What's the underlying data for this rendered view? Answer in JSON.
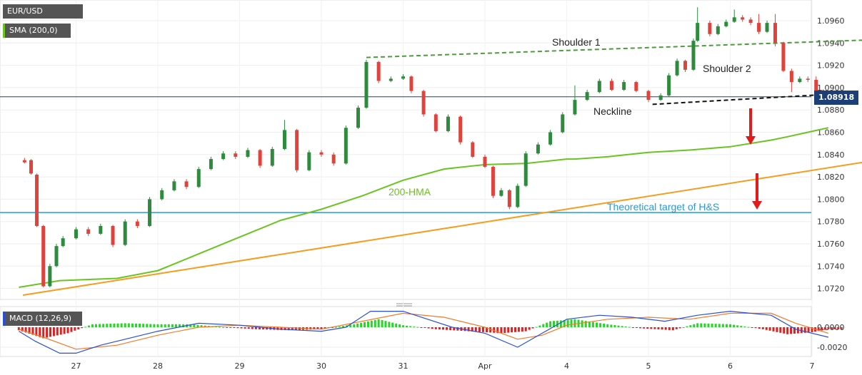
{
  "badges": {
    "symbol": "EUR/USD",
    "sma": "SMA (200,0)",
    "macd": "MACD (12,26,9)",
    "price": "1.08918"
  },
  "colors": {
    "bull": "#2e8b3e",
    "bear": "#e0433c",
    "hma": "#6ac420",
    "trend": "#f59d1e",
    "target": "#2a9ad6",
    "macd_line": "#2a4fd6",
    "signal_line": "#f07b2a",
    "hist_pos": "#28d428",
    "hist_neg": "#e02020",
    "arrow": "#e01c1c",
    "shoulder_line": "#4a9e3a"
  },
  "chart_data": {
    "type": "candlestick",
    "x_ticks": [
      "27",
      "28",
      "29",
      "30",
      "31",
      "Apr",
      "4",
      "5",
      "6",
      "7"
    ],
    "y_ticks": [
      "1.0960",
      "1.0940",
      "1.0920",
      "1.0900",
      "1.0880",
      "1.0860",
      "1.0840",
      "1.0820",
      "1.0800",
      "1.0780",
      "1.0760",
      "1.0740",
      "1.0720"
    ],
    "macd_ticks": [
      "0.0000",
      "-0.0020"
    ],
    "current_price": 1.08918,
    "target_level": 1.0788,
    "annotations": {
      "shoulder1": "Shoulder 1",
      "shoulder2": "Shoulder 2",
      "neckline": "Neckline",
      "hma": "200-HMA",
      "target": "Theoretical target of H&S"
    },
    "hma": [
      [
        26.3,
        1.0721
      ],
      [
        26.8,
        1.0727
      ],
      [
        27.5,
        1.0729
      ],
      [
        28,
        1.0736
      ],
      [
        28.5,
        1.0751
      ],
      [
        29,
        1.0766
      ],
      [
        29.5,
        1.0781
      ],
      [
        30,
        1.0791
      ],
      [
        30.5,
        1.0803
      ],
      [
        31,
        1.0817
      ],
      [
        31.5,
        1.0827
      ],
      [
        32,
        1.0831
      ],
      [
        32.5,
        1.0832
      ],
      [
        33,
        1.0836
      ],
      [
        33,
        1.0836
      ],
      [
        33.1,
        1.0836
      ],
      [
        33.5,
        1.0838
      ],
      [
        34,
        1.0842
      ],
      [
        34.5,
        1.0844
      ],
      [
        35,
        1.0847
      ],
      [
        35.5,
        1.0853
      ],
      [
        35.7,
        1.0856
      ],
      [
        36.2,
        1.0864
      ]
    ],
    "trendline": [
      [
        26.35,
        1.0714
      ],
      [
        37.05,
        1.0838
      ]
    ],
    "shoulder_line": [
      [
        30.55,
        1.0927
      ],
      [
        36.8,
        1.0943
      ]
    ],
    "neckline": [
      [
        34.05,
        1.0885
      ],
      [
        36.45,
        1.0895
      ]
    ],
    "candles": [
      [
        26.37,
        1.0835,
        1.0833,
        1.0837,
        1.0832
      ],
      [
        26.45,
        1.0835,
        1.0823,
        1.0836,
        1.0822
      ],
      [
        26.52,
        1.0822,
        1.0776,
        1.0823,
        1.0775
      ],
      [
        26.6,
        1.0776,
        1.0722,
        1.0777,
        1.0721
      ],
      [
        26.68,
        1.0722,
        1.074,
        1.0742,
        1.0721
      ],
      [
        26.76,
        1.074,
        1.0758,
        1.076,
        1.0739
      ],
      [
        26.84,
        1.0758,
        1.0765,
        1.0767,
        1.0757
      ],
      [
        27.0,
        1.0765,
        1.0773,
        1.0775,
        1.0764
      ],
      [
        27.15,
        1.0773,
        1.0769,
        1.0775,
        1.0767
      ],
      [
        27.3,
        1.0769,
        1.0776,
        1.0778,
        1.0768
      ],
      [
        27.45,
        1.0776,
        1.0759,
        1.0777,
        1.0757
      ],
      [
        27.6,
        1.0759,
        1.078,
        1.0782,
        1.0758
      ],
      [
        27.75,
        1.078,
        1.0776,
        1.0782,
        1.0774
      ],
      [
        27.9,
        1.0776,
        1.08,
        1.0802,
        1.0775
      ],
      [
        28.05,
        1.08,
        1.0808,
        1.081,
        1.0799
      ],
      [
        28.2,
        1.0808,
        1.0816,
        1.0818,
        1.0807
      ],
      [
        28.35,
        1.0816,
        1.0811,
        1.0818,
        1.0809
      ],
      [
        28.5,
        1.0811,
        1.0827,
        1.0829,
        1.081
      ],
      [
        28.65,
        1.0827,
        1.0836,
        1.0838,
        1.0826
      ],
      [
        28.8,
        1.0836,
        1.0841,
        1.0843,
        1.0835
      ],
      [
        28.95,
        1.0841,
        1.0838,
        1.0843,
        1.0836
      ],
      [
        29.1,
        1.0838,
        1.0844,
        1.0846,
        1.0837
      ],
      [
        29.25,
        1.0844,
        1.083,
        1.0845,
        1.0828
      ],
      [
        29.4,
        1.083,
        1.0845,
        1.0847,
        1.0829
      ],
      [
        29.55,
        1.0845,
        1.0862,
        1.0871,
        1.0844
      ],
      [
        29.7,
        1.0862,
        1.0826,
        1.0863,
        1.0824
      ],
      [
        29.85,
        1.0826,
        1.0842,
        1.0844,
        1.0825
      ],
      [
        30.0,
        1.0842,
        1.084,
        1.0844,
        1.0838
      ],
      [
        30.15,
        1.084,
        1.0832,
        1.0842,
        1.083
      ],
      [
        30.3,
        1.0832,
        1.0864,
        1.0866,
        1.0831
      ],
      [
        30.45,
        1.0864,
        1.0882,
        1.0884,
        1.0863
      ],
      [
        30.55,
        1.0882,
        1.0923,
        1.0925,
        1.0881
      ],
      [
        30.7,
        1.0923,
        1.0906,
        1.0924,
        1.0904
      ],
      [
        30.85,
        1.0906,
        1.0908,
        1.091,
        1.0905
      ],
      [
        31.0,
        1.0908,
        1.091,
        1.0912,
        1.0907
      ],
      [
        31.1,
        1.091,
        1.0897,
        1.0911,
        1.0895
      ],
      [
        31.25,
        1.0897,
        1.0876,
        1.0898,
        1.0874
      ],
      [
        31.4,
        1.0876,
        1.0861,
        1.0877,
        1.086
      ],
      [
        31.55,
        1.0861,
        1.0874,
        1.0876,
        1.086
      ],
      [
        31.7,
        1.0874,
        1.0851,
        1.0875,
        1.0849
      ],
      [
        31.85,
        1.0851,
        1.0838,
        1.0852,
        1.0837
      ],
      [
        32.0,
        1.0838,
        1.0829,
        1.084,
        1.0828
      ],
      [
        32.1,
        1.0829,
        1.0803,
        1.083,
        1.0801
      ],
      [
        32.2,
        1.0803,
        1.0808,
        1.081,
        1.0802
      ],
      [
        32.3,
        1.0808,
        1.0793,
        1.0809,
        1.0791
      ],
      [
        32.4,
        1.0793,
        1.0812,
        1.0814,
        1.0792
      ],
      [
        32.5,
        1.0812,
        1.0841,
        1.0843,
        1.0811
      ],
      [
        32.65,
        1.0841,
        1.0849,
        1.0851,
        1.084
      ],
      [
        32.8,
        1.0849,
        1.086,
        1.0862,
        1.0848
      ],
      [
        32.95,
        1.086,
        1.0876,
        1.0878,
        1.0859
      ],
      [
        33.1,
        1.0876,
        1.0889,
        1.0902,
        1.0875
      ],
      [
        33.25,
        1.0889,
        1.0896,
        1.0898,
        1.0888
      ],
      [
        33.4,
        1.0896,
        1.0906,
        1.0908,
        1.0895
      ],
      [
        33.55,
        1.0906,
        1.0898,
        1.0908,
        1.0897
      ],
      [
        33.7,
        1.0898,
        1.0905,
        1.0907,
        1.0897
      ],
      [
        33.85,
        1.0905,
        1.0897,
        1.0906,
        1.0896
      ],
      [
        34.0,
        1.0897,
        1.0889,
        1.0898,
        1.0887
      ],
      [
        34.15,
        1.0889,
        1.0893,
        1.0895,
        1.0888
      ],
      [
        34.25,
        1.0893,
        1.0911,
        1.0913,
        1.0892
      ],
      [
        34.35,
        1.0911,
        1.0924,
        1.0926,
        1.091
      ],
      [
        34.45,
        1.0924,
        1.0916,
        1.0925,
        1.0914
      ],
      [
        34.55,
        1.0916,
        1.0942,
        1.0944,
        1.0915
      ],
      [
        34.6,
        1.0942,
        1.0958,
        1.0972,
        1.0941
      ],
      [
        34.75,
        1.0958,
        1.0948,
        1.096,
        1.0946
      ],
      [
        34.85,
        1.0948,
        1.0955,
        1.0957,
        1.0947
      ],
      [
        34.95,
        1.0955,
        1.0959,
        1.0961,
        1.0954
      ],
      [
        35.05,
        1.0959,
        1.0963,
        1.097,
        1.0958
      ],
      [
        35.15,
        1.0963,
        1.0961,
        1.0965,
        1.0959
      ],
      [
        35.25,
        1.0961,
        1.0958,
        1.0963,
        1.0956
      ],
      [
        35.35,
        1.0958,
        1.095,
        1.0966,
        1.0948
      ],
      [
        35.45,
        1.095,
        1.0958,
        1.096,
        1.0949
      ],
      [
        35.55,
        1.0958,
        1.094,
        1.0966,
        1.0937
      ],
      [
        35.65,
        1.094,
        1.0915,
        1.0941,
        1.0914
      ],
      [
        35.75,
        1.0915,
        1.0905,
        1.0917,
        1.0896
      ],
      [
        35.85,
        1.0905,
        1.0908,
        1.091,
        1.0904
      ],
      [
        35.95,
        1.0908,
        1.0907,
        1.091,
        1.0905
      ],
      [
        36.05,
        1.0907,
        1.0897,
        1.091,
        1.0895
      ],
      [
        36.12,
        1.0897,
        1.0889,
        1.0898,
        1.0886
      ],
      [
        36.2,
        1.0889,
        1.0892,
        1.0894,
        1.0888
      ]
    ],
    "macd": [
      [
        26.3,
        -0.0004
      ],
      [
        26.5,
        -0.0014
      ],
      [
        26.8,
        -0.0026
      ],
      [
        27,
        -0.0026
      ],
      [
        27.3,
        -0.0018
      ],
      [
        27.6,
        -0.0012
      ],
      [
        28,
        -0.0004
      ],
      [
        28.5,
        0.0004
      ],
      [
        29,
        0.0002
      ],
      [
        29.5,
        -0.0002
      ],
      [
        30,
        -0.0004
      ],
      [
        30.3,
        0.0
      ],
      [
        30.6,
        0.0016
      ],
      [
        31,
        0.0016
      ],
      [
        31.3,
        0.0008
      ],
      [
        31.6,
        0.0
      ],
      [
        32,
        -0.0006
      ],
      [
        32.4,
        -0.002
      ],
      [
        32.7,
        -0.0006
      ],
      [
        33,
        0.0008
      ],
      [
        33.4,
        0.0012
      ],
      [
        33.8,
        0.001
      ],
      [
        34.2,
        0.0006
      ],
      [
        34.6,
        0.0012
      ],
      [
        35,
        0.0016
      ],
      [
        35.5,
        0.0012
      ],
      [
        35.8,
        -0.0002
      ],
      [
        36.2,
        -0.001
      ]
    ],
    "signal": [
      [
        26.3,
        -0.0002
      ],
      [
        26.6,
        -0.001
      ],
      [
        27,
        -0.0022
      ],
      [
        27.5,
        -0.0018
      ],
      [
        28,
        -0.0008
      ],
      [
        28.5,
        0.0
      ],
      [
        29,
        0.0002
      ],
      [
        29.5,
        0.0
      ],
      [
        30,
        -0.0002
      ],
      [
        30.5,
        0.0006
      ],
      [
        31,
        0.0014
      ],
      [
        31.5,
        0.001
      ],
      [
        32,
        0.0
      ],
      [
        32.4,
        -0.0012
      ],
      [
        32.7,
        -0.0008
      ],
      [
        33,
        0.0002
      ],
      [
        33.5,
        0.0008
      ],
      [
        34,
        0.001
      ],
      [
        34.5,
        0.0008
      ],
      [
        35,
        0.0014
      ],
      [
        35.5,
        0.0014
      ],
      [
        35.8,
        0.0004
      ],
      [
        36.2,
        -0.0006
      ]
    ],
    "macd_hist": [
      [
        26.3,
        -0.0003
      ],
      [
        26.6,
        -0.0011
      ],
      [
        26.9,
        -0.0006
      ],
      [
        27.2,
        0.0003
      ],
      [
        27.6,
        0.0004
      ],
      [
        28,
        0.0003
      ],
      [
        28.4,
        0.0003
      ],
      [
        28.8,
        0.0
      ],
      [
        29.2,
        -0.0002
      ],
      [
        29.6,
        -0.0003
      ],
      [
        30,
        -0.0002
      ],
      [
        30.4,
        0.0003
      ],
      [
        30.7,
        0.0008
      ],
      [
        31,
        0.0002
      ],
      [
        31.4,
        -0.0002
      ],
      [
        31.8,
        -0.0004
      ],
      [
        32.2,
        -0.0006
      ],
      [
        32.5,
        -0.0004
      ],
      [
        32.8,
        0.0006
      ],
      [
        33.1,
        0.0008
      ],
      [
        33.5,
        0.0003
      ],
      [
        33.9,
        -0.0001
      ],
      [
        34.3,
        -0.0003
      ],
      [
        34.6,
        0.0004
      ],
      [
        35,
        0.0003
      ],
      [
        35.4,
        -0.0002
      ],
      [
        35.7,
        -0.0007
      ],
      [
        36,
        -0.0005
      ],
      [
        36.2,
        -0.0002
      ]
    ]
  }
}
